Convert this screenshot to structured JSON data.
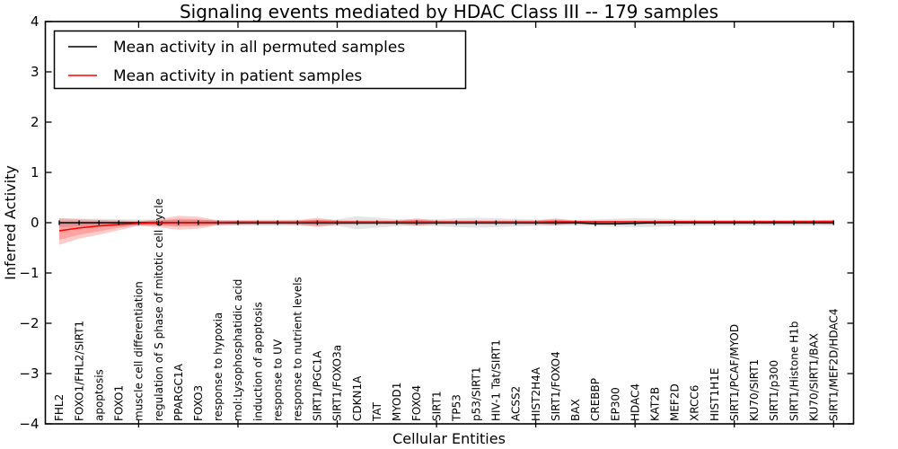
{
  "chart_data": {
    "type": "line",
    "title": "Signaling events mediated by HDAC Class III -- 179 samples",
    "xlabel": "Cellular Entities",
    "ylabel": "Inferred Activity",
    "ylim": [
      -4,
      4
    ],
    "yticks": [
      4,
      3,
      2,
      1,
      0,
      -1,
      -2,
      -3,
      -4
    ],
    "ytick_labels": [
      "4",
      "3",
      "2",
      "1",
      "0",
      "−1",
      "−2",
      "−3",
      "−4"
    ],
    "xtick_indices": [
      4,
      9,
      14,
      19,
      24,
      29,
      34,
      39
    ],
    "grid": false,
    "legend_position": "upper-left",
    "legend": [
      "Mean activity in all permuted samples",
      "Mean activity in patient samples"
    ],
    "categories": [
      "FHL2",
      "FOXO1/FHL2/SIRT1",
      "apoptosis",
      "FOXO1",
      "muscle cell differentiation",
      "regulation of S phase of mitotic cell cycle",
      "PPARGC1A",
      "FOXO3",
      "response to hypoxia",
      "mol:Lysophosphatidic acid",
      "induction of apoptosis",
      "response to UV",
      "response to nutrient levels",
      "SIRT1/PGC1A",
      "SIRT1/FOXO3a",
      "CDKN1A",
      "TAT",
      "MYOD1",
      "FOXO4",
      "SIRT1",
      "TP53",
      "p53/SIRT1",
      "HIV-1 Tat/SIRT1",
      "ACSS2",
      "HIST2H4A",
      "SIRT1/FOXO4",
      "BAX",
      "CREBBP",
      "EP300",
      "HDAC4",
      "KAT2B",
      "MEF2D",
      "XRCC6",
      "HIST1H1E",
      "SIRT1/PCAF/MYOD",
      "KU70/SIRT1",
      "SIRT1/p300",
      "SIRT1/Histone H1b",
      "KU70/SIRT1/BAX",
      "SIRT1/MEF2D/HDAC4"
    ],
    "series": [
      {
        "name": "Mean activity in all permuted samples",
        "color": "#000000",
        "band_color": "rgba(0,0,0,0.10)",
        "band_inner_color": "rgba(0,0,0,0.08)",
        "values": [
          0,
          0,
          0,
          0,
          0,
          0,
          0,
          0,
          0,
          0,
          0,
          0,
          0,
          0,
          0,
          0,
          0,
          0,
          0,
          0,
          0,
          0,
          0,
          0,
          0,
          0,
          0,
          -0.02,
          -0.02,
          -0.01,
          0,
          0,
          0,
          0,
          0,
          0,
          0,
          0,
          0,
          0
        ],
        "band_upper": [
          0.09,
          0.08,
          0.075,
          0.07,
          0.065,
          0.06,
          0.06,
          0.06,
          0.055,
          0.055,
          0.06,
          0.06,
          0.06,
          0.06,
          0.065,
          0.13,
          0.1,
          0.07,
          0.06,
          0.07,
          0.09,
          0.1,
          0.09,
          0.075,
          0.065,
          0.06,
          0.055,
          0.065,
          0.08,
          0.09,
          0.085,
          0.07,
          0.06,
          0.055,
          0.055,
          0.055,
          0.055,
          0.055,
          0.055,
          0.055
        ],
        "band_lower": [
          -0.09,
          -0.08,
          -0.075,
          -0.07,
          -0.065,
          -0.06,
          -0.06,
          -0.06,
          -0.055,
          -0.055,
          -0.06,
          -0.06,
          -0.06,
          -0.06,
          -0.065,
          -0.13,
          -0.1,
          -0.07,
          -0.06,
          -0.07,
          -0.09,
          -0.1,
          -0.09,
          -0.075,
          -0.065,
          -0.06,
          -0.055,
          -0.065,
          -0.08,
          -0.09,
          -0.085,
          -0.07,
          -0.06,
          -0.055,
          -0.055,
          -0.055,
          -0.055,
          -0.055,
          -0.055,
          -0.055
        ],
        "band_inner_upper": [
          0.045,
          0.045,
          0.045,
          0.045,
          0.045,
          0.045,
          0.045,
          0.045,
          0.045,
          0.045,
          0.045,
          0.045,
          0.045,
          0.045,
          0.045,
          0.045,
          0.045,
          0.045,
          0.045,
          0.045,
          0.045,
          0.045,
          0.045,
          0.045,
          0.045,
          0.045,
          0.045,
          0.045,
          0.045,
          0.045,
          0.045,
          0.045,
          0.045,
          0.045,
          0.045,
          0.045,
          0.045,
          0.045,
          0.045,
          0.045
        ],
        "band_inner_lower": [
          -0.045,
          -0.045,
          -0.045,
          -0.045,
          -0.045,
          -0.045,
          -0.045,
          -0.045,
          -0.045,
          -0.045,
          -0.045,
          -0.045,
          -0.045,
          -0.045,
          -0.045,
          -0.045,
          -0.045,
          -0.045,
          -0.045,
          -0.045,
          -0.045,
          -0.045,
          -0.045,
          -0.045,
          -0.045,
          -0.045,
          -0.045,
          -0.045,
          -0.045,
          -0.045,
          -0.045,
          -0.045,
          -0.045,
          -0.045,
          -0.045,
          -0.045,
          -0.045,
          -0.045,
          -0.045,
          -0.045
        ]
      },
      {
        "name": "Mean activity in patient samples",
        "color": "#ff0000",
        "band_color": "rgba(255,0,0,0.20)",
        "band_inner_color": "rgba(255,0,0,0.20)",
        "values": [
          -0.16,
          -0.105,
          -0.065,
          -0.035,
          -0.015,
          0,
          0.005,
          0.005,
          0.008,
          0.01,
          0.01,
          0.01,
          0.01,
          0.012,
          0.012,
          0.012,
          0.012,
          0.012,
          0.015,
          0.015,
          0.015,
          0.015,
          0.015,
          0.015,
          0.015,
          0.018,
          0.018,
          0.018,
          0.018,
          0.018,
          0.018,
          0.02,
          0.02,
          0.02,
          0.02,
          0.02,
          0.02,
          0.02,
          0.02,
          0.02
        ],
        "band_upper": [
          0.09,
          0.07,
          0.055,
          0.045,
          0.025,
          0.07,
          0.14,
          0.12,
          0.045,
          0.04,
          0.04,
          0.04,
          0.045,
          0.1,
          0.045,
          0.04,
          0.04,
          0.04,
          0.09,
          0.04,
          0.04,
          0.04,
          0.04,
          0.04,
          0.04,
          0.09,
          0.04,
          0.04,
          0.04,
          0.04,
          0.04,
          0.04,
          0.04,
          0.04,
          0.04,
          0.04,
          0.04,
          0.045,
          0.05,
          0.06
        ],
        "band_lower": [
          -0.44,
          -0.32,
          -0.24,
          -0.15,
          -0.06,
          -0.09,
          -0.14,
          -0.12,
          -0.05,
          -0.04,
          -0.035,
          -0.035,
          -0.04,
          -0.09,
          -0.04,
          -0.035,
          -0.03,
          -0.03,
          -0.06,
          -0.03,
          -0.03,
          -0.03,
          -0.03,
          -0.03,
          -0.03,
          -0.05,
          -0.02,
          -0.02,
          -0.02,
          -0.02,
          -0.02,
          -0.02,
          -0.02,
          -0.02,
          -0.02,
          -0.02,
          -0.02,
          -0.02,
          -0.02,
          -0.03
        ],
        "band_inner_upper": [
          -0.02,
          -0.01,
          0,
          0.005,
          0.01,
          0.04,
          0.08,
          0.07,
          0.03,
          0.03,
          0.03,
          0.03,
          0.03,
          0.06,
          0.03,
          0.03,
          0.03,
          0.03,
          0.06,
          0.03,
          0.03,
          0.03,
          0.03,
          0.03,
          0.03,
          0.06,
          0.03,
          0.03,
          0.03,
          0.03,
          0.03,
          0.03,
          0.03,
          0.03,
          0.03,
          0.03,
          0.03,
          0.03,
          0.035,
          0.04
        ],
        "band_inner_lower": [
          -0.34,
          -0.24,
          -0.17,
          -0.1,
          -0.04,
          -0.05,
          -0.08,
          -0.07,
          -0.03,
          -0.025,
          -0.02,
          -0.02,
          -0.025,
          -0.05,
          -0.025,
          -0.02,
          -0.015,
          -0.015,
          -0.035,
          -0.015,
          -0.015,
          -0.015,
          -0.015,
          -0.015,
          -0.015,
          -0.03,
          -0.01,
          -0.01,
          -0.01,
          -0.01,
          -0.01,
          -0.01,
          -0.01,
          -0.01,
          -0.01,
          -0.01,
          -0.01,
          -0.01,
          -0.01,
          -0.015
        ]
      }
    ]
  }
}
